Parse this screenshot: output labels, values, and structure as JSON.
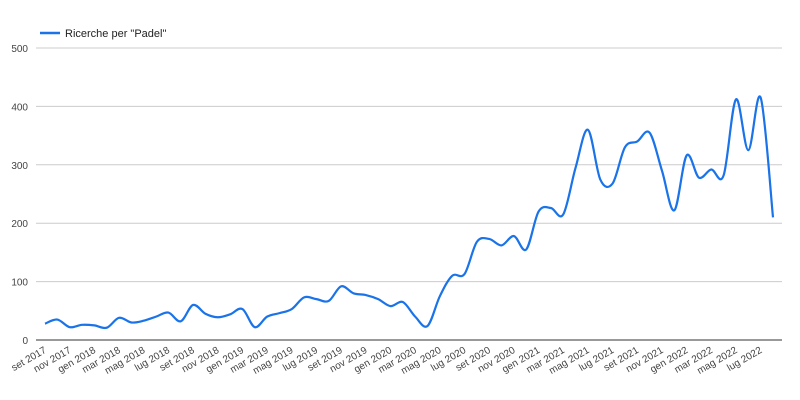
{
  "chart_data": {
    "type": "line",
    "categories": [
      "set 2017",
      null,
      "nov 2017",
      null,
      "gen 2018",
      null,
      "mar 2018",
      null,
      "mag 2018",
      null,
      "lug 2018",
      null,
      "set 2018",
      null,
      "nov 2018",
      null,
      "gen 2019",
      null,
      "mar 2019",
      null,
      "mag 2019",
      null,
      "lug 2019",
      null,
      "set 2019",
      null,
      "nov 2019",
      null,
      "gen 2020",
      null,
      "mar 2020",
      null,
      "mag 2020",
      null,
      "lug 2020",
      null,
      "set 2020",
      null,
      "nov 2020",
      null,
      "gen 2021",
      null,
      "mar 2021",
      null,
      "mag 2021",
      null,
      "lug 2021",
      null,
      "set 2021",
      null,
      "nov 2021",
      null,
      "gen 2022",
      null,
      "mar 2022",
      null,
      "mag 2022",
      null,
      "lug 2022",
      null
    ],
    "series": [
      {
        "name": "Ricerche per \"Padel\"",
        "color": "#1a73e8",
        "values": [
          28,
          35,
          22,
          26,
          25,
          21,
          38,
          30,
          33,
          40,
          47,
          32,
          60,
          45,
          39,
          44,
          53,
          22,
          40,
          46,
          53,
          73,
          70,
          67,
          92,
          80,
          77,
          70,
          58,
          65,
          40,
          24,
          75,
          110,
          113,
          168,
          173,
          162,
          178,
          155,
          220,
          226,
          215,
          295,
          360,
          275,
          268,
          330,
          340,
          355,
          290,
          222,
          316,
          278,
          292,
          282,
          412,
          325,
          415,
          210
        ]
      }
    ],
    "ylim": [
      0,
      500
    ],
    "yticks": [
      0,
      100,
      200,
      300,
      400,
      500
    ],
    "grid": true,
    "legend": "top-left"
  }
}
